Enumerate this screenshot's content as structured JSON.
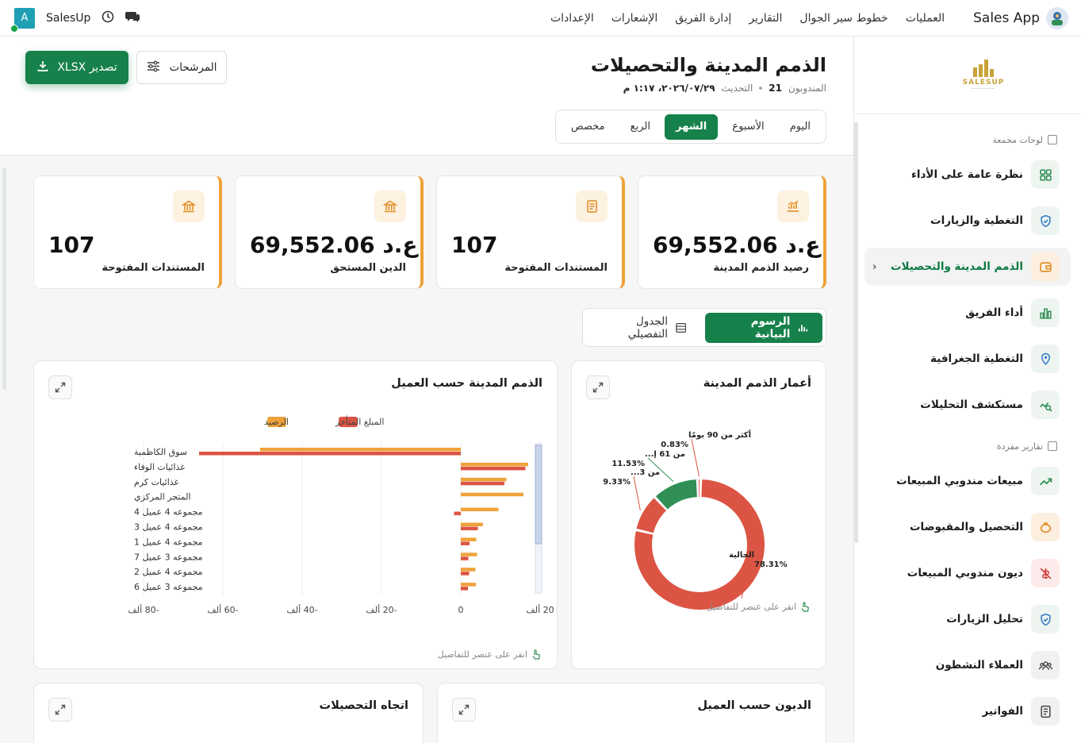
{
  "topbar": {
    "brand": "Sales App",
    "nav": [
      "العمليات",
      "خطوط سير الجوال",
      "التقارير",
      "إدارة الفريق",
      "الإشعارات",
      "الإعدادات"
    ],
    "app_name": "SalesUp",
    "avatar_letter": "A"
  },
  "sidebar": {
    "logo_text": "SALESUP",
    "section_aggregated": "لوحات مجمعة",
    "section_single": "تقارير مفردة",
    "aggregated_items": [
      {
        "label": "نظرة عامة على الأداء",
        "icon": "dashboard-icon"
      },
      {
        "label": "التغطية والزيارات",
        "icon": "shield-icon"
      },
      {
        "label": "الذمم المدينة والتحصيلات",
        "icon": "wallet-icon",
        "active": true
      },
      {
        "label": "أداء الفريق",
        "icon": "bar-chart-icon"
      },
      {
        "label": "التغطية الجغرافية",
        "icon": "map-pin-icon"
      },
      {
        "label": "مستكشف التحليلات",
        "icon": "analytics-search-icon"
      }
    ],
    "single_items": [
      {
        "label": "مبيعات مندوبي المبيعات",
        "icon": "trend-up-icon"
      },
      {
        "label": "التحصيل والمقبوضات",
        "icon": "piggy-bank-icon"
      },
      {
        "label": "ديون مندوبي المبيعات",
        "icon": "debt-icon"
      },
      {
        "label": "تحليل الزيارات",
        "icon": "shield-icon"
      },
      {
        "label": "العملاء النشطون",
        "icon": "users-icon"
      },
      {
        "label": "الفواتير",
        "icon": "invoice-icon"
      }
    ]
  },
  "page": {
    "title": "الذمم المدينة والتحصيلات",
    "reps_label": "المندوبون",
    "reps_count": "21",
    "updated_label": "التحديث",
    "updated_value": "٢٠٢٦/٠٧/٢٩، ١:١٧ م",
    "export_label": "تصدير XLSX",
    "filters_label": "المرشحات",
    "periods": [
      "اليوم",
      "الأسبوع",
      "الشهر",
      "الربع",
      "مخصص"
    ],
    "active_period": "الشهر"
  },
  "kpis": [
    {
      "label": "رصيد الذمم المدينة",
      "value": "69,552.06 ع.د",
      "icon": "chart-icon"
    },
    {
      "label": "المستندات المفتوحة",
      "value": "107",
      "icon": "document-icon"
    },
    {
      "label": "الدين المستحق",
      "value": "69,552.06 ع.د",
      "icon": "bank-icon"
    },
    {
      "label": "المستندات المفتوحة",
      "value": "107",
      "icon": "bank-icon"
    }
  ],
  "view_tabs": {
    "charts": "الرسوم البيانية",
    "table": "الجدول التفصيلي"
  },
  "cards": {
    "aging_title": "أعمار الذمم المدينة",
    "by_customer_title": "الذمم المدينة حسب العميل",
    "debts_title": "الديون حسب العميل",
    "trend_title": "اتجاه التحصيلات",
    "hint": "انقر على عنصر للتفاصيل"
  },
  "chart_data": [
    {
      "type": "pie",
      "title": "أعمار الذمم المدينة",
      "slices": [
        {
          "label": "الحالية",
          "value": 78.31,
          "color": "#dc5443"
        },
        {
          "label": "من 3...",
          "value": 9.33,
          "color": "#dc5443"
        },
        {
          "label": "من 61 إ...",
          "value": 11.53,
          "color": "#2f8f55"
        },
        {
          "label": "أكثر من 90 يومًا",
          "value": 0.83,
          "color": "#dc5443"
        }
      ]
    },
    {
      "type": "bar",
      "orientation": "horizontal",
      "title": "الذمم المدينة حسب العميل",
      "categories": [
        "سوق الكاظمية",
        "غذائيات الوفاء",
        "غذائيات كرم",
        "المتجر المركزي",
        "مجموعه 4 عميل 4",
        "مجموعه 4 عميل 3",
        "مجموعه 4 عميل 1",
        "مجموعه 3 عميل 7",
        "مجموعه 4 عميل 2",
        "مجموعه 3 عميل 6"
      ],
      "series": [
        {
          "name": "الرصيد",
          "color": "#efa23a",
          "values": [
            -50600,
            17000,
            11500,
            15800,
            9500,
            5600,
            3900,
            4100,
            3700,
            3800
          ]
        },
        {
          "name": "المبلغ المتأخر",
          "color": "#dc5443",
          "values": [
            -66000,
            16300,
            11000,
            0,
            -1700,
            4300,
            2200,
            1900,
            2100,
            1800
          ]
        }
      ],
      "xlim": [
        -80000,
        20000
      ],
      "ticks": [
        -80000,
        -60000,
        -40000,
        -20000,
        0,
        20000
      ],
      "tick_labels": [
        "-80 ألف",
        "-60 ألف",
        "-40 ألف",
        "-20 ألف",
        "0",
        "20 ألف"
      ],
      "legend": "top"
    }
  ]
}
